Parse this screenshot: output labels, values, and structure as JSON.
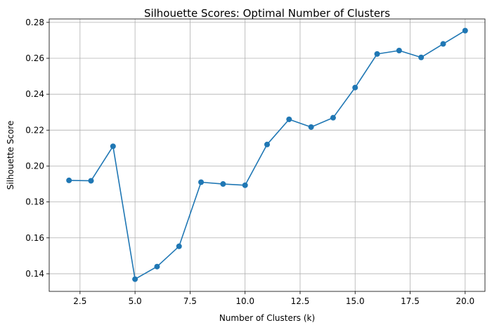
{
  "chart_data": {
    "type": "line",
    "title": "Silhouette Scores: Optimal Number of Clusters",
    "xlabel": "Number of Clusters (k)",
    "ylabel": "Silhouette Score",
    "xlim": [
      1.1,
      20.9
    ],
    "ylim": [
      0.1302,
      0.2819
    ],
    "xticks": [
      2.5,
      5.0,
      7.5,
      10.0,
      12.5,
      15.0,
      17.5,
      20.0
    ],
    "xtick_labels": [
      "2.5",
      "5.0",
      "7.5",
      "10.0",
      "12.5",
      "15.0",
      "17.5",
      "20.0"
    ],
    "yticks": [
      0.14,
      0.16,
      0.18,
      0.2,
      0.22,
      0.24,
      0.26,
      0.28
    ],
    "ytick_labels": [
      "0.14",
      "0.16",
      "0.18",
      "0.20",
      "0.22",
      "0.24",
      "0.26",
      "0.28"
    ],
    "grid": true,
    "marker": "circle",
    "color": "#1f77b4",
    "series": [
      {
        "x": [
          2,
          3,
          4,
          5,
          6,
          7,
          8,
          9,
          10,
          11,
          12,
          13,
          14,
          15,
          16,
          17,
          18,
          19,
          20
        ],
        "values": [
          0.192,
          0.1918,
          0.211,
          0.137,
          0.144,
          0.1553,
          0.191,
          0.19,
          0.1893,
          0.212,
          0.226,
          0.2217,
          0.2269,
          0.2437,
          0.2624,
          0.2643,
          0.2605,
          0.268,
          0.2754
        ]
      }
    ]
  }
}
